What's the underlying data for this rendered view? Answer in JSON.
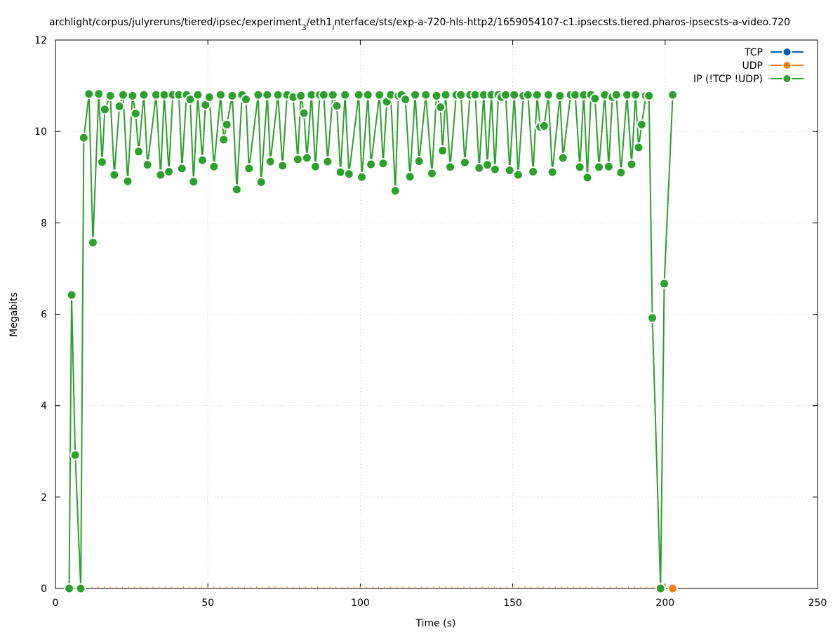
{
  "chart_data": {
    "type": "line",
    "title": "archlight/corpus/julyreruns/tiered/ipsec/experiment_3/eth1_interface/sts/exp-a-720-hls-http2/1659054107-c1.ipsecsts.tiered.pharos-ipsecsts-a-video.720",
    "title_main_1": "archlight/corpus/julyreruns/tiered/ipsec/experiment",
    "title_sub_1": "3",
    "title_main_2": "/eth1",
    "title_sub_2": "i",
    "title_main_3": "nterface/sts/exp-a-720-hls-http2/1659054107-c1.ipsecsts.tiered.pharos-ipsecsts-a-video.720",
    "xlabel": "Time (s)",
    "ylabel": "Megabits",
    "xlim": [
      0,
      250
    ],
    "ylim": [
      0,
      12
    ],
    "x_ticks": [
      0,
      50,
      100,
      150,
      200,
      250
    ],
    "y_ticks": [
      0,
      2,
      4,
      6,
      8,
      10,
      12
    ],
    "grid": true,
    "legend_position": "top-right",
    "series": [
      {
        "name": "TCP",
        "color": "#0060ad",
        "x": [],
        "y": []
      },
      {
        "name": "UDP",
        "color": "#ff7f0e",
        "x": [
          202.5
        ],
        "y": [
          0
        ],
        "baseline_tick_start": 6,
        "baseline_tick_end": 200,
        "baseline_tick_step": 2
      },
      {
        "name": "IP (!TCP  !UDP)",
        "color": "#2ca02c",
        "x": [
          4.5,
          5.3,
          6.5,
          8.3,
          9.3,
          11,
          12.3,
          14.2,
          15.3,
          16.2,
          18,
          19.3,
          21,
          22.2,
          23.7,
          25.3,
          26.3,
          27.3,
          29,
          30.2,
          33,
          34.5,
          35.7,
          37.2,
          38.5,
          40.5,
          41.5,
          43,
          44.2,
          45.3,
          46.7,
          48.2,
          49.2,
          50.5,
          52,
          54.2,
          55.2,
          56.2,
          58,
          59.5,
          61.2,
          62.5,
          63.5,
          66.5,
          67.5,
          69.5,
          70.5,
          73,
          74.5,
          76,
          78,
          79.5,
          80.5,
          81.5,
          82.5,
          84,
          85.3,
          86.7,
          88,
          89.3,
          91,
          92.3,
          93.5,
          95,
          96.3,
          99.5,
          100.5,
          102.5,
          103.5,
          106.3,
          107.5,
          108.7,
          110,
          111.5,
          112.5,
          113.5,
          114.8,
          116.3,
          118,
          119.3,
          121.5,
          123.5,
          125,
          126.3,
          127,
          128,
          129.5,
          131.5,
          133,
          134.3,
          136,
          137.7,
          139,
          140.5,
          141.7,
          143,
          144.2,
          145.3,
          146.3,
          147.7,
          149,
          150.5,
          151.8,
          153.5,
          155,
          156.7,
          158,
          159,
          160.3,
          161.7,
          163,
          165.5,
          166.5,
          169,
          170.5,
          172,
          173.3,
          174.5,
          175.7,
          177,
          178.3,
          180.2,
          181.5,
          182.7,
          184,
          185.5,
          187.5,
          189,
          190.3,
          191.3,
          192.3,
          193.7,
          194.7,
          195.8,
          198.5,
          199.7,
          202.5
        ],
        "y": [
          0,
          6.42,
          2.92,
          0,
          9.86,
          10.82,
          7.57,
          10.82,
          9.33,
          10.48,
          10.78,
          9.05,
          10.55,
          10.8,
          8.91,
          10.78,
          10.39,
          9.56,
          10.8,
          9.27,
          10.8,
          9.05,
          10.8,
          9.12,
          10.8,
          10.8,
          9.19,
          10.8,
          10.7,
          8.9,
          10.8,
          9.37,
          10.58,
          10.75,
          9.23,
          10.8,
          9.82,
          10.15,
          10.78,
          8.73,
          10.8,
          10.7,
          9.19,
          10.8,
          8.89,
          10.8,
          9.34,
          10.8,
          9.25,
          10.8,
          10.75,
          9.39,
          10.78,
          10.4,
          9.42,
          10.8,
          9.23,
          10.8,
          10.8,
          9.34,
          10.8,
          10.56,
          9.11,
          10.8,
          9.07,
          10.8,
          9.0,
          10.8,
          9.28,
          10.8,
          9.3,
          10.65,
          10.8,
          8.7,
          10.78,
          10.8,
          10.7,
          9.01,
          10.8,
          9.35,
          10.8,
          9.08,
          10.78,
          10.53,
          9.58,
          10.8,
          9.22,
          10.8,
          10.8,
          9.32,
          10.8,
          10.8,
          9.2,
          10.8,
          9.27,
          10.8,
          9.17,
          10.8,
          10.75,
          10.8,
          9.15,
          10.8,
          9.05,
          10.78,
          10.8,
          9.12,
          10.8,
          10.1,
          10.12,
          10.8,
          9.11,
          10.78,
          9.42,
          10.8,
          10.8,
          9.22,
          10.8,
          8.99,
          10.8,
          10.72,
          9.22,
          10.8,
          9.23,
          10.75,
          10.8,
          9.1,
          10.8,
          9.28,
          10.8,
          9.65,
          10.15,
          10.78,
          10.78,
          5.92,
          0.0,
          6.67,
          10.8
        ]
      }
    ]
  }
}
